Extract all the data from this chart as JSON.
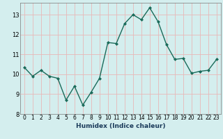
{
  "x": [
    0,
    1,
    2,
    3,
    4,
    5,
    6,
    7,
    8,
    9,
    10,
    11,
    12,
    13,
    14,
    15,
    16,
    17,
    18,
    19,
    20,
    21,
    22,
    23
  ],
  "y": [
    10.35,
    9.9,
    10.2,
    9.9,
    9.8,
    8.7,
    9.4,
    8.45,
    9.1,
    9.8,
    11.6,
    11.55,
    12.55,
    13.0,
    12.75,
    13.35,
    12.65,
    11.5,
    10.75,
    10.8,
    10.05,
    10.15,
    10.2,
    10.75
  ],
  "xlabel": "Humidex (Indice chaleur)",
  "xlim": [
    -0.5,
    23.5
  ],
  "ylim": [
    8.0,
    13.6
  ],
  "yticks": [
    8,
    9,
    10,
    11,
    12,
    13
  ],
  "xticks": [
    0,
    1,
    2,
    3,
    4,
    5,
    6,
    7,
    8,
    9,
    10,
    11,
    12,
    13,
    14,
    15,
    16,
    17,
    18,
    19,
    20,
    21,
    22,
    23
  ],
  "line_color": "#1a6b5a",
  "bg_color": "#d4eeee",
  "grid_color": "#e8b8b8",
  "marker": "D",
  "marker_size": 2.0,
  "line_width": 1.0,
  "tick_fontsize": 5.5,
  "xlabel_fontsize": 6.5
}
